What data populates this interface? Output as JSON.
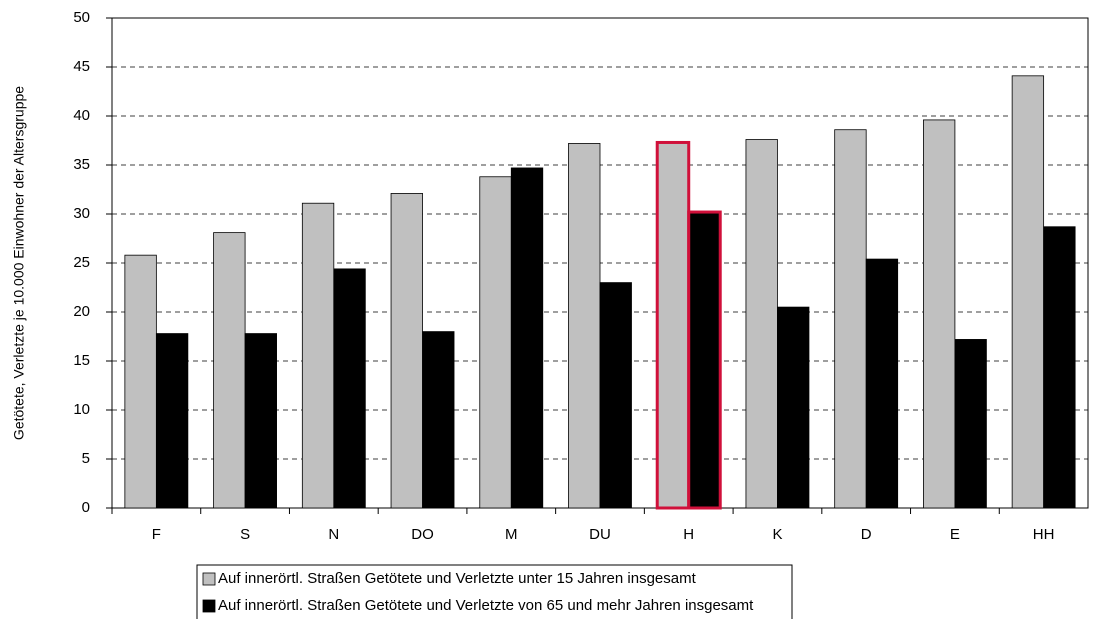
{
  "chart_data": {
    "type": "bar",
    "y_label": "Getötete, Verletzte je 10.000 Einwohner der Altersgruppe",
    "categories": [
      "F",
      "S",
      "N",
      "DO",
      "M",
      "DU",
      "H",
      "K",
      "D",
      "E",
      "HH"
    ],
    "series": [
      {
        "name": "Auf innerörtl. Straßen Getötete und Verletzte unter 15 Jahren insgesamt",
        "color": "#c0c0c0",
        "values": [
          25.8,
          28.1,
          31.1,
          32.1,
          33.8,
          37.2,
          37.3,
          37.6,
          38.6,
          39.6,
          44.1
        ]
      },
      {
        "name": "Auf innerörtl. Straßen Getötete und Verletzte von 65 und mehr Jahren insgesamt",
        "color": "#000000",
        "values": [
          17.8,
          17.8,
          24.4,
          18.0,
          34.7,
          23.0,
          30.2,
          20.5,
          25.4,
          17.2,
          28.7
        ]
      }
    ],
    "ylim": [
      0,
      50
    ],
    "yticks": [
      0,
      5,
      10,
      15,
      20,
      25,
      30,
      35,
      40,
      45,
      50
    ],
    "grid": true,
    "highlight_category": "H",
    "highlight_color": "#d0103a"
  }
}
